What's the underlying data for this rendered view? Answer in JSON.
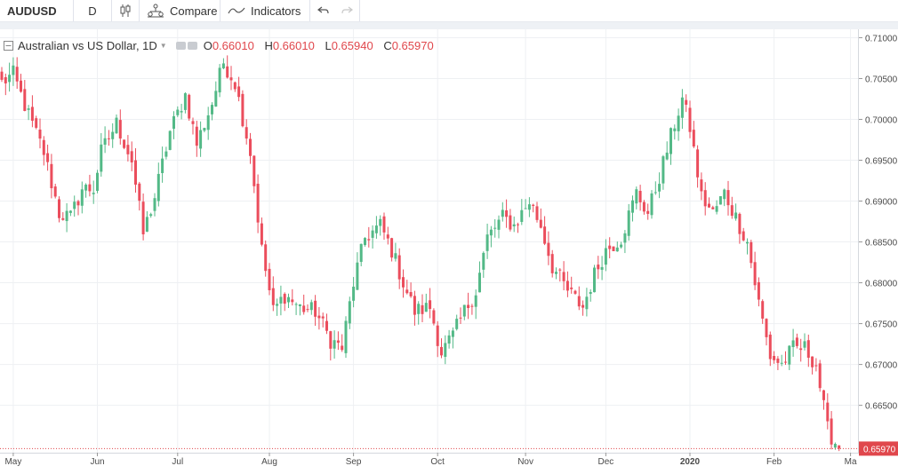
{
  "toolbar": {
    "symbol": "AUDUSD",
    "interval": "D",
    "compare_label": "Compare",
    "indicators_label": "Indicators",
    "chart_type_icon": "candlestick-icon",
    "compare_icon": "compare-icon",
    "indicators_icon": "indicators-wave-icon",
    "undo_icon": "undo-icon",
    "redo_icon": "redo-icon"
  },
  "legend": {
    "title": "Australian vs US Dollar, 1D",
    "o_label": "O",
    "o_value": "0.66010",
    "h_label": "H",
    "h_value": "0.66010",
    "l_label": "L",
    "l_value": "0.65940",
    "c_label": "C",
    "c_value": "0.65970"
  },
  "colors": {
    "up": "#53b987",
    "down": "#eb4d5c",
    "last_price_badge": "#e0474c",
    "grid": "#eef0f3",
    "axis_text": "#4a4a4a"
  },
  "chart_data": {
    "type": "candlestick",
    "y_ticks": [
      "0.71000",
      "0.70500",
      "0.70000",
      "0.69500",
      "0.69000",
      "0.68500",
      "0.68000",
      "0.67500",
      "0.67000",
      "0.66500"
    ],
    "y_tick_values": [
      0.71,
      0.705,
      0.7,
      0.695,
      0.69,
      0.685,
      0.68,
      0.675,
      0.67,
      0.665
    ],
    "ylim": [
      0.6592,
      0.7107
    ],
    "x_ticks": [
      "May",
      "Jun",
      "Jul",
      "Aug",
      "Sep",
      "Oct",
      "Nov",
      "Dec",
      "2020",
      "Feb",
      "Ma"
    ],
    "x_tick_index": [
      3,
      25,
      46,
      70,
      92,
      114,
      137,
      158,
      180,
      202,
      222
    ],
    "bold_ticks": [
      "2020"
    ],
    "last_price": "0.65970",
    "last_price_value": 0.6597,
    "anchors": [
      [
        0,
        0.7045
      ],
      [
        3,
        0.7055
      ],
      [
        7,
        0.7005
      ],
      [
        11,
        0.696
      ],
      [
        15,
        0.6885
      ],
      [
        18,
        0.688
      ],
      [
        21,
        0.6915
      ],
      [
        24,
        0.6915
      ],
      [
        26,
        0.696
      ],
      [
        30,
        0.6995
      ],
      [
        34,
        0.695
      ],
      [
        37,
        0.686
      ],
      [
        40,
        0.6905
      ],
      [
        44,
        0.6985
      ],
      [
        48,
        0.703
      ],
      [
        51,
        0.697
      ],
      [
        55,
        0.702
      ],
      [
        58,
        0.707
      ],
      [
        61,
        0.7045
      ],
      [
        65,
        0.696
      ],
      [
        68,
        0.684
      ],
      [
        71,
        0.6765
      ],
      [
        74,
        0.6785
      ],
      [
        78,
        0.677
      ],
      [
        82,
        0.6765
      ],
      [
        86,
        0.673
      ],
      [
        89,
        0.672
      ],
      [
        92,
        0.68
      ],
      [
        95,
        0.6855
      ],
      [
        99,
        0.687
      ],
      [
        102,
        0.684
      ],
      [
        105,
        0.68
      ],
      [
        108,
        0.6765
      ],
      [
        112,
        0.677
      ],
      [
        115,
        0.6715
      ],
      [
        118,
        0.6735
      ],
      [
        121,
        0.6765
      ],
      [
        124,
        0.679
      ],
      [
        127,
        0.6855
      ],
      [
        131,
        0.688
      ],
      [
        134,
        0.687
      ],
      [
        138,
        0.69
      ],
      [
        141,
        0.687
      ],
      [
        144,
        0.682
      ],
      [
        148,
        0.679
      ],
      [
        152,
        0.677
      ],
      [
        155,
        0.681
      ],
      [
        158,
        0.684
      ],
      [
        162,
        0.6855
      ],
      [
        166,
        0.691
      ],
      [
        169,
        0.6885
      ],
      [
        172,
        0.693
      ],
      [
        176,
        0.6995
      ],
      [
        178,
        0.7025
      ],
      [
        180,
        0.699
      ],
      [
        183,
        0.6905
      ],
      [
        186,
        0.6885
      ],
      [
        189,
        0.691
      ],
      [
        192,
        0.688
      ],
      [
        195,
        0.685
      ],
      [
        198,
        0.6775
      ],
      [
        201,
        0.671
      ],
      [
        204,
        0.67
      ],
      [
        207,
        0.672
      ],
      [
        210,
        0.672
      ],
      [
        213,
        0.67
      ],
      [
        216,
        0.662
      ],
      [
        219,
        0.6597
      ]
    ],
    "last_bar": {
      "o": 0.6601,
      "h": 0.6601,
      "l": 0.6594,
      "c": 0.6597
    }
  }
}
